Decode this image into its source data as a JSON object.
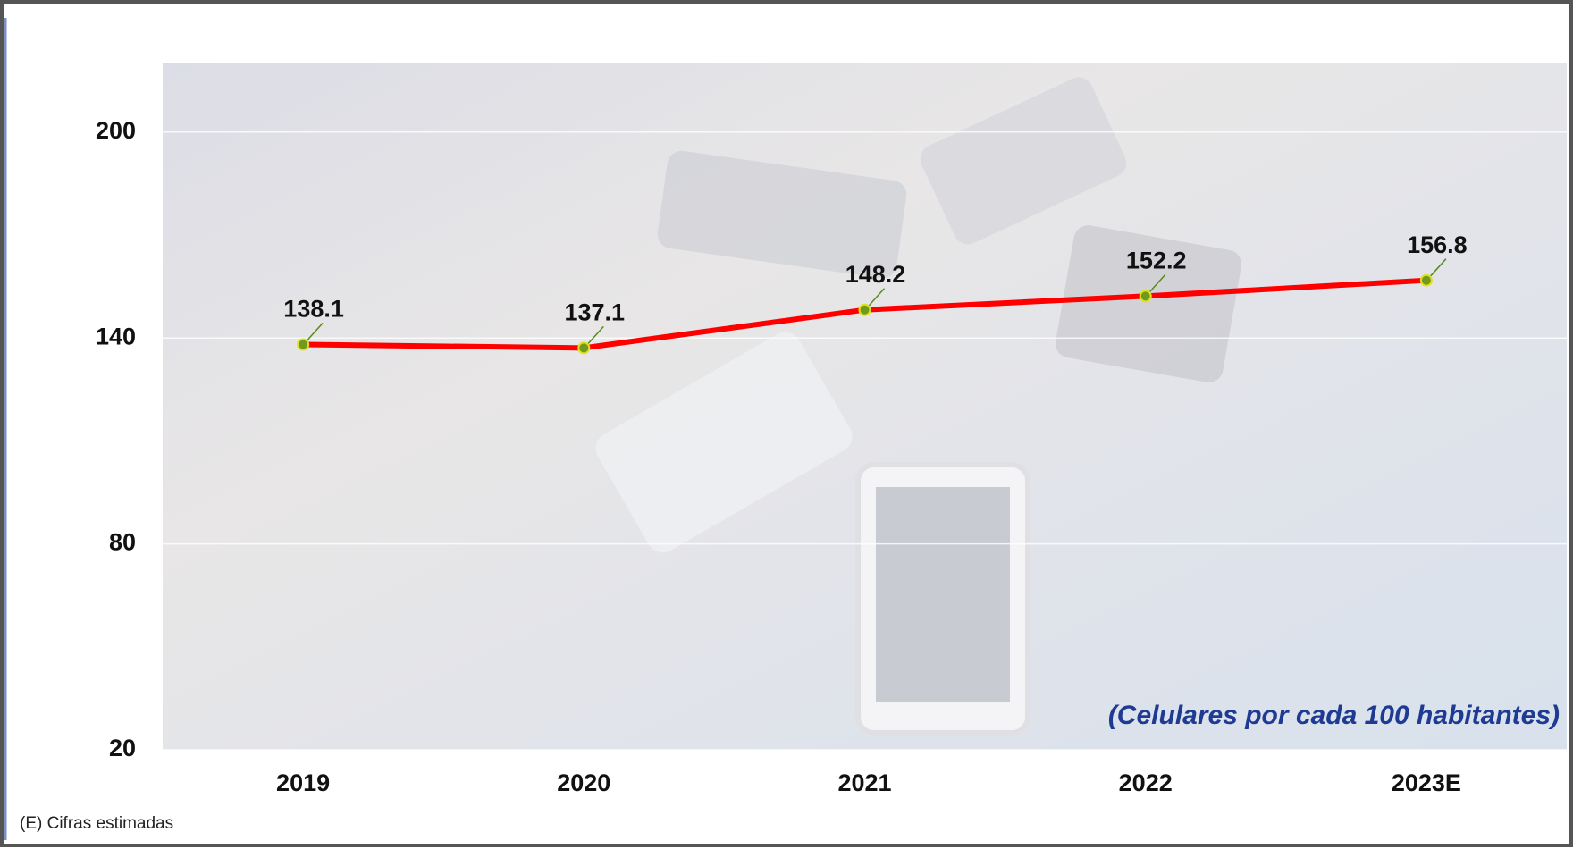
{
  "chart_data": {
    "type": "line",
    "categories": [
      "2019",
      "2020",
      "2021",
      "2022",
      "2023E"
    ],
    "series": [
      {
        "name": "Celulares por cada 100 habitantes",
        "color": "#ff0000",
        "values": [
          138.1,
          137.1,
          148.2,
          152.2,
          156.8
        ]
      }
    ],
    "ylim": [
      20,
      220
    ],
    "yticks": [
      20,
      80,
      140,
      200
    ],
    "grid": true,
    "marker_color": "#6f9a1e",
    "annotation": "(Celulares por cada 100 habitantes)",
    "footnote": "(E) Cifras estimadas"
  }
}
